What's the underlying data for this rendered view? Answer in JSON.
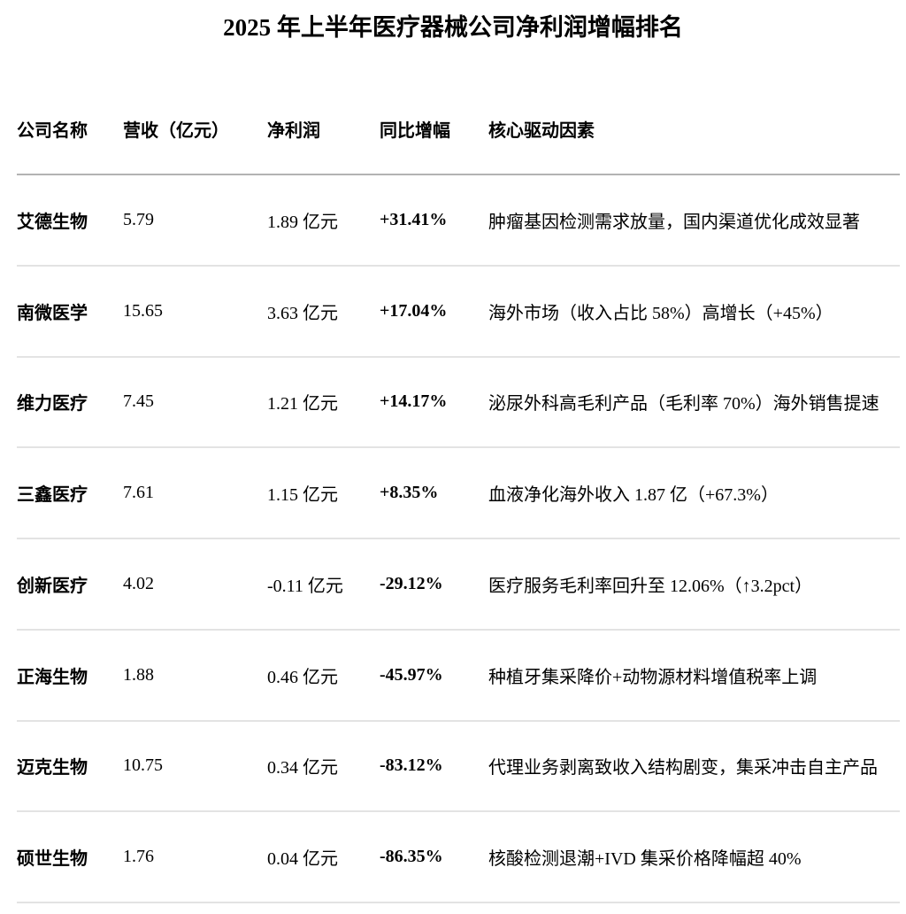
{
  "title": "2025 年上半年医疗器械公司净利润增幅排名",
  "colors": {
    "background": "#ffffff",
    "text": "#000000",
    "header_rule": "#b3b3b3",
    "row_rule": "#e3e3e3"
  },
  "table": {
    "columns": {
      "company": "公司名称",
      "revenue": "营收（亿元）",
      "net_profit": "净利润",
      "yoy_growth": "同比增幅",
      "driver": "核心驱动因素"
    },
    "rows": [
      {
        "company": "艾德生物",
        "revenue": "5.79",
        "net_profit": "1.89 亿元",
        "yoy_growth": "+31.41%",
        "driver": "肿瘤基因检测需求放量，国内渠道优化成效显著"
      },
      {
        "company": "南微医学",
        "revenue": "15.65",
        "net_profit": "3.63 亿元",
        "yoy_growth": "+17.04%",
        "driver": "海外市场（收入占比 58%）高增长（+45%）"
      },
      {
        "company": "维力医疗",
        "revenue": "7.45",
        "net_profit": "1.21 亿元",
        "yoy_growth": "+14.17%",
        "driver": "泌尿外科高毛利产品（毛利率 70%）海外销售提速"
      },
      {
        "company": "三鑫医疗",
        "revenue": "7.61",
        "net_profit": "1.15 亿元",
        "yoy_growth": "+8.35%",
        "driver": "血液净化海外收入 1.87 亿（+67.3%）"
      },
      {
        "company": "创新医疗",
        "revenue": "4.02",
        "net_profit": "-0.11 亿元",
        "yoy_growth": "-29.12%",
        "driver": "医疗服务毛利率回升至 12.06%（↑3.2pct）"
      },
      {
        "company": "正海生物",
        "revenue": "1.88",
        "net_profit": "0.46 亿元",
        "yoy_growth": "-45.97%",
        "driver": "种植牙集采降价+动物源材料增值税率上调"
      },
      {
        "company": "迈克生物",
        "revenue": "10.75",
        "net_profit": "0.34 亿元",
        "yoy_growth": "-83.12%",
        "driver": "代理业务剥离致收入结构剧变，集采冲击自主产品"
      },
      {
        "company": "硕世生物",
        "revenue": "1.76",
        "net_profit": "0.04 亿元",
        "yoy_growth": "-86.35%",
        "driver": "核酸检测退潮+IVD 集采价格降幅超 40%"
      }
    ]
  }
}
